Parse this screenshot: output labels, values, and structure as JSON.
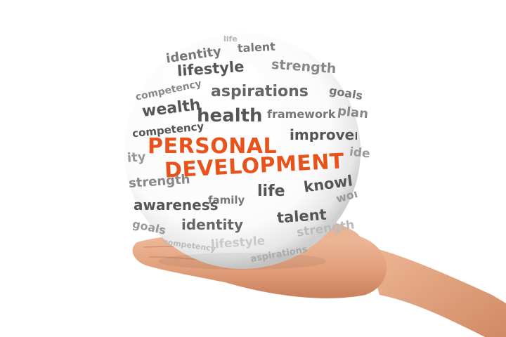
{
  "headline": {
    "line1": "PERSONAL",
    "line2": "DEVELOPMENT",
    "color": "#e8531c"
  },
  "words": [
    "life",
    "talent",
    "identity",
    "lifestyle",
    "strength",
    "competency",
    "aspirations",
    "goals",
    "wealth",
    "health",
    "framework",
    "plan",
    "competency",
    "improvement",
    "ity",
    "ide",
    "strength",
    "family",
    "life",
    "knowledge",
    "awareness",
    "family",
    "life",
    "knowledge",
    "goals",
    "identity",
    "talent",
    "competency",
    "lifestyle",
    "strength",
    "aspirations",
    "work"
  ],
  "colors": {
    "word_dark": "#555555",
    "word_mid": "#888888",
    "word_light": "#b5b5b5",
    "skin": "#e7a986"
  }
}
